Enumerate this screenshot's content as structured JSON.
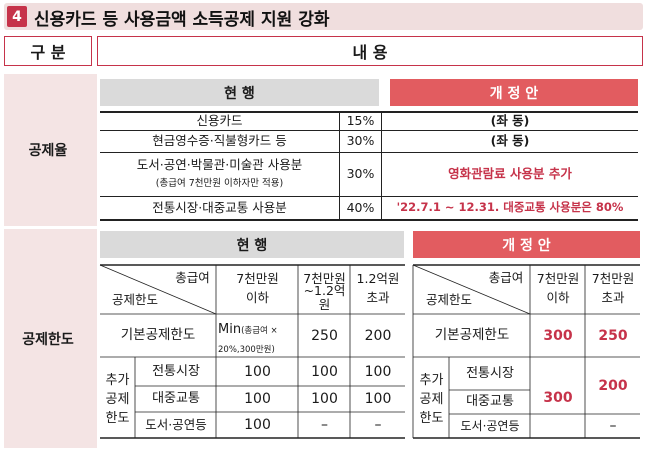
{
  "title": {
    "number": "4",
    "text": "신용카드 등 사용금액 소득공제 지원 강화"
  },
  "header": {
    "gubun": "구 분",
    "naeyong": "내 용"
  },
  "deduction_rate": {
    "category": "공제율",
    "current_label": "현 행",
    "proposal_label": "개 정 안",
    "rows": [
      {
        "item": "신용카드",
        "rate": "15%",
        "proposal": "(좌 동)"
      },
      {
        "item": "현금영수증·직불형카드 등",
        "rate": "30%",
        "proposal": "(좌 동)"
      },
      {
        "item": "도서·공연·박물관·미술관 사용분",
        "note": "(총급여 7천만원 이하자만 적용)",
        "rate": "30%",
        "proposal": "영화관람료 사용분 추가"
      },
      {
        "item": "전통시장·대중교통 사용분",
        "rate": "40%",
        "proposal": "'22.7.1 ~ 12.31. 대중교통 사용분은 80%"
      }
    ]
  },
  "deduction_limit": {
    "category": "공제한도",
    "current_label": "현 행",
    "proposal_label": "개 정 안",
    "current": {
      "corner_top": "총급여",
      "corner_bottom": "공제한도",
      "cols": [
        "7천만원 이하",
        "7천만원 ~1.2억원",
        "1.2억원 초과"
      ],
      "col_lines": [
        [
          "7천만원",
          "이하"
        ],
        [
          "7천만원",
          "~1.2억원"
        ],
        [
          "1.2억원",
          "초과"
        ]
      ],
      "basic_label": "기본공제한도",
      "basic_values": {
        "min_main": "Min",
        "min_note_a": "(총급여 ×",
        "min_note_b": "20%,300만원)",
        "v2": "250",
        "v3": "200"
      },
      "extra_label": [
        "추가",
        "공제",
        "한도"
      ],
      "extra_rows": [
        {
          "name": "전통시장",
          "values": [
            "100",
            "100",
            "100"
          ]
        },
        {
          "name": "대중교통",
          "values": [
            "100",
            "100",
            "100"
          ]
        },
        {
          "name": "도서·공연등",
          "values": [
            "100",
            "–",
            "–"
          ]
        }
      ]
    },
    "proposal": {
      "corner_top": "총급여",
      "corner_bottom": "공제한도",
      "col_lines": [
        [
          "7천만원",
          "이하"
        ],
        [
          "7천만원",
          "초과"
        ]
      ],
      "basic_label": "기본공제한도",
      "basic_values": [
        "300",
        "250"
      ],
      "extra_label": [
        "추가",
        "공제",
        "한도"
      ],
      "extra_rows": [
        "전통시장",
        "대중교통",
        "도서·공연등"
      ],
      "merged_300": "300",
      "merged_200": "200",
      "last_dash": "–"
    }
  },
  "colors": {
    "accent": "#c6334a",
    "pink_bg": "#f4e4e4",
    "red_bar": "#e25c60",
    "grey_bar": "#dadada"
  }
}
